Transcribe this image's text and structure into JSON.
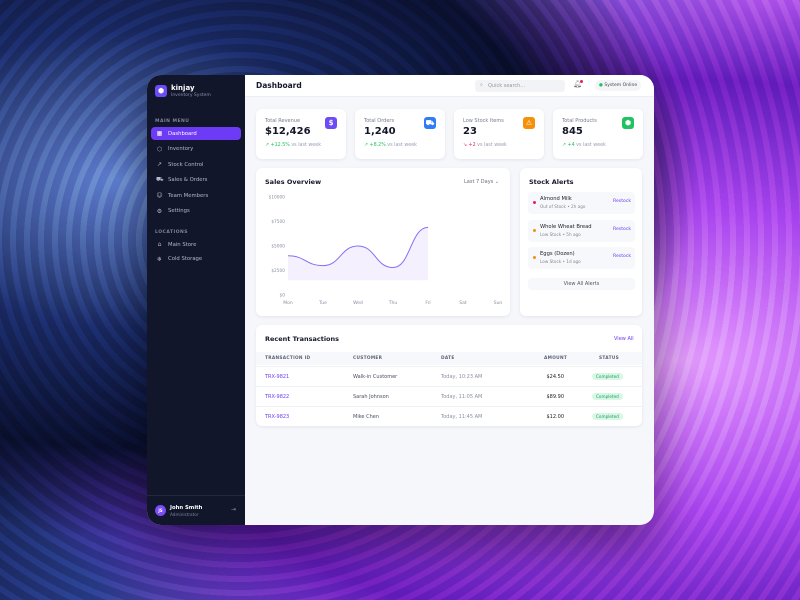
{
  "brand": {
    "name": "kinjay",
    "subtitle": "Inventory System"
  },
  "sidebar": {
    "main_menu_label": "MAIN MENU",
    "items": [
      {
        "label": "Dashboard",
        "icon": "grid-icon",
        "active": true
      },
      {
        "label": "Inventory",
        "icon": "box-icon"
      },
      {
        "label": "Stock Control",
        "icon": "trend-icon"
      },
      {
        "label": "Sales & Orders",
        "icon": "cart-icon"
      },
      {
        "label": "Team Members",
        "icon": "users-icon"
      },
      {
        "label": "Settings",
        "icon": "gear-icon"
      }
    ],
    "locations_label": "LOCATIONS",
    "locations": [
      {
        "label": "Main Store",
        "icon": "store-icon"
      },
      {
        "label": "Cold Storage",
        "icon": "snowflake-icon"
      }
    ]
  },
  "user": {
    "initials": "JS",
    "name": "John Smith",
    "role": "Administrator"
  },
  "header": {
    "title": "Dashboard",
    "search_placeholder": "Quick search...",
    "status": "System Online"
  },
  "stats": [
    {
      "label": "Total Revenue",
      "value": "$12,426",
      "change": "+12.5%",
      "note": "vs last week",
      "color": "#6d4cf5",
      "icon": "dollar-icon",
      "dir": "up"
    },
    {
      "label": "Total Orders",
      "value": "1,240",
      "change": "+8.2%",
      "note": "vs last week",
      "color": "#2f7cf6",
      "icon": "cart-icon",
      "dir": "up"
    },
    {
      "label": "Low Stock Items",
      "value": "23",
      "change": "+2",
      "note": "vs last week",
      "color": "#f5900b",
      "icon": "warning-icon",
      "dir": "down"
    },
    {
      "label": "Total Products",
      "value": "845",
      "change": "+4",
      "note": "vs last week",
      "color": "#20c262",
      "icon": "package-icon",
      "dir": "up"
    }
  ],
  "sales": {
    "title": "Sales Overview",
    "range": "Last 7 Days"
  },
  "chart_data": {
    "type": "area",
    "categories": [
      "Mon",
      "Tue",
      "Wed",
      "Thu",
      "Fri",
      "Sat",
      "Sun"
    ],
    "values": [
      4000,
      3000,
      5000,
      2800,
      6900,
      null,
      null
    ],
    "ylim": [
      0,
      10000
    ],
    "yticks": [
      "$0",
      "$2500",
      "$5000",
      "$7500",
      "$10000"
    ],
    "grid": false,
    "color": "#8b6cf5"
  },
  "alerts": {
    "title": "Stock Alerts",
    "items": [
      {
        "name": "Almond Milk",
        "detail": "Out of Stock • 2h ago",
        "action": "Restock",
        "color": "#e0245e"
      },
      {
        "name": "Whole Wheat Bread",
        "detail": "Low Stock • 5h ago",
        "action": "Restock",
        "color": "#f5900b"
      },
      {
        "name": "Eggs (Dozen)",
        "detail": "Low Stock • 1d ago",
        "action": "Restock",
        "color": "#f5900b"
      }
    ],
    "view_all": "View All Alerts"
  },
  "transactions": {
    "title": "Recent Transactions",
    "view_all": "View All",
    "columns": [
      "TRANSACTION ID",
      "CUSTOMER",
      "DATE",
      "AMOUNT",
      "STATUS"
    ],
    "rows": [
      {
        "id": "TRX-9821",
        "customer": "Walk-in Customer",
        "date": "Today, 10:23 AM",
        "amount": "$24.50",
        "status": "Completed"
      },
      {
        "id": "TRX-9822",
        "customer": "Sarah Johnson",
        "date": "Today, 11:05 AM",
        "amount": "$89.90",
        "status": "Completed"
      },
      {
        "id": "TRX-9823",
        "customer": "Mike Chen",
        "date": "Today, 11:45 AM",
        "amount": "$12.00",
        "status": "Completed"
      }
    ]
  }
}
